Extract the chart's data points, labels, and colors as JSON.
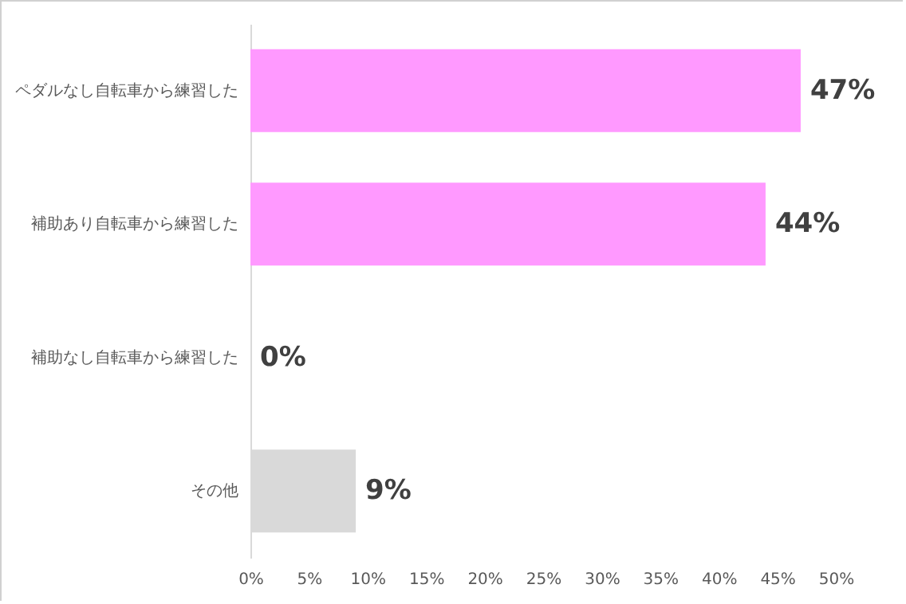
{
  "chart_data": {
    "type": "bar",
    "orientation": "horizontal",
    "categories": [
      "ペダルなし自転車から練習した",
      "補助あり自転車から練習した",
      "補助なし自転車から練習した",
      "その他"
    ],
    "values": [
      47,
      44,
      0,
      9
    ],
    "colors": [
      "#ff99ff",
      "#ff99ff",
      "#ff99ff",
      "#d9d9d9"
    ],
    "value_labels": [
      "47%",
      "44%",
      "0%",
      "9%"
    ],
    "xlim": [
      0,
      50
    ],
    "xticks": [
      {
        "value": 0,
        "label": "0%"
      },
      {
        "value": 5,
        "label": "5%"
      },
      {
        "value": 10,
        "label": "10%"
      },
      {
        "value": 15,
        "label": "15%"
      },
      {
        "value": 20,
        "label": "20%"
      },
      {
        "value": 25,
        "label": "25%"
      },
      {
        "value": 30,
        "label": "30%"
      },
      {
        "value": 35,
        "label": "35%"
      },
      {
        "value": 40,
        "label": "40%"
      },
      {
        "value": 45,
        "label": "45%"
      },
      {
        "value": 50,
        "label": "50%"
      }
    ],
    "grid": false,
    "legend": false
  }
}
